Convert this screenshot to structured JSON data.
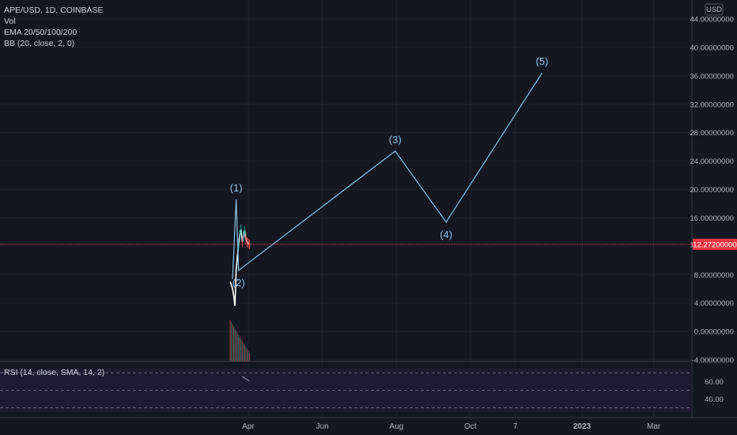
{
  "legend": {
    "symbol": "APE/USD, 1D, COINBASE",
    "vol": "Vol",
    "ema": "EMA 20/50/100/200",
    "bb": "BB (20, close, 2, 0)"
  },
  "rsi": {
    "label": "RSI (14, close, SMA, 14, 2)",
    "ticks": [
      "60.00",
      "40.00"
    ]
  },
  "axis": {
    "currency": "USD",
    "last_price": "12.27200000",
    "colors": {
      "background": "#131722",
      "wave": "#8bc3e8",
      "last_price": "#f23645",
      "up": "#26a69a",
      "down": "#ef5350"
    }
  },
  "chart_data": {
    "type": "line",
    "ylim": [
      -4,
      44
    ],
    "y_ticks": [
      "44.00000000",
      "40.00000000",
      "36.00000000",
      "32.00000000",
      "28.00000000",
      "24.00000000",
      "20.00000000",
      "16.00000000",
      "12.27200000",
      "8.00000000",
      "4.00000000",
      "0.00000000",
      "-4.00000000"
    ],
    "x_ticks": [
      "Apr",
      "Jun",
      "Aug",
      "Oct",
      "7",
      "2023",
      "Mar"
    ],
    "last_price": 12.272,
    "price_history": [
      {
        "x": "2022-03-17",
        "y": 7.0
      },
      {
        "x": "2022-03-18",
        "y": 6.6
      },
      {
        "x": "2022-03-19",
        "y": 6.0
      },
      {
        "x": "2022-03-20",
        "y": 5.0
      },
      {
        "x": "2022-03-21",
        "y": 3.6
      },
      {
        "x": "2022-03-22",
        "y": 8.6
      },
      {
        "x": "2022-03-23",
        "y": 10.6
      },
      {
        "x": "2022-03-24",
        "y": 12.2
      },
      {
        "x": "2022-03-25",
        "y": 13.6
      },
      {
        "x": "2022-03-26",
        "y": 14.4
      },
      {
        "x": "2022-03-27",
        "y": 12.6
      },
      {
        "x": "2022-03-28",
        "y": 13.4
      },
      {
        "x": "2022-03-29",
        "y": 14.2
      },
      {
        "x": "2022-03-30",
        "y": 13.0
      },
      {
        "x": "2022-03-31",
        "y": 12.6
      },
      {
        "x": "2022-04-01",
        "y": 12.4
      },
      {
        "x": "2022-04-02",
        "y": 12.27
      }
    ],
    "series": [
      {
        "name": "",
        "points": [
          {
            "x": "2022-03-19",
            "y": 7.4,
            "label": ""
          },
          {
            "x": "2022-03-22",
            "y": 18.6,
            "label": "(1)"
          },
          {
            "x": "2022-03-24",
            "y": 8.6,
            "label": "(2)"
          },
          {
            "x": "2022-07-31",
            "y": 25.4,
            "label": "(3)"
          },
          {
            "x": "2022-09-11",
            "y": 15.4,
            "label": "(4)"
          },
          {
            "x": "2022-11-29",
            "y": 36.4,
            "label": "(5)"
          }
        ]
      }
    ]
  }
}
